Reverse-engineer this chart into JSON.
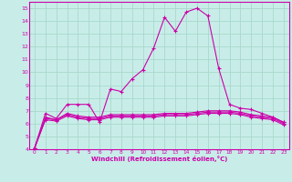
{
  "title": "",
  "xlabel": "Windchill (Refroidissement éolien,°C)",
  "ylabel": "",
  "bg_color": "#c8ede8",
  "line_color": "#cc00aa",
  "grid_color": "#a8d8cc",
  "text_color": "#cc00aa",
  "xlim": [
    -0.5,
    23.5
  ],
  "ylim": [
    4,
    15.5
  ],
  "xticks": [
    0,
    1,
    2,
    3,
    4,
    5,
    6,
    7,
    8,
    9,
    10,
    11,
    12,
    13,
    14,
    15,
    16,
    17,
    18,
    19,
    20,
    21,
    22,
    23
  ],
  "yticks": [
    4,
    5,
    6,
    7,
    8,
    9,
    10,
    11,
    12,
    13,
    14,
    15
  ],
  "series": [
    [
      4.1,
      6.8,
      6.4,
      7.5,
      7.5,
      7.5,
      6.1,
      8.7,
      8.5,
      9.5,
      10.2,
      11.9,
      14.3,
      13.2,
      14.7,
      15.0,
      14.4,
      10.3,
      7.5,
      7.2,
      7.1,
      6.8,
      6.5,
      6.1
    ],
    [
      4.1,
      6.5,
      6.3,
      6.8,
      6.6,
      6.5,
      6.5,
      6.7,
      6.7,
      6.7,
      6.7,
      6.7,
      6.8,
      6.8,
      6.8,
      6.9,
      7.0,
      7.0,
      7.0,
      6.9,
      6.7,
      6.6,
      6.5,
      6.1
    ],
    [
      4.1,
      6.4,
      6.3,
      6.7,
      6.5,
      6.4,
      6.4,
      6.6,
      6.6,
      6.6,
      6.6,
      6.6,
      6.7,
      6.7,
      6.7,
      6.8,
      6.9,
      6.9,
      6.9,
      6.8,
      6.6,
      6.5,
      6.4,
      6.0
    ],
    [
      4.1,
      6.3,
      6.2,
      6.6,
      6.4,
      6.3,
      6.3,
      6.5,
      6.5,
      6.5,
      6.5,
      6.5,
      6.6,
      6.6,
      6.6,
      6.7,
      6.8,
      6.8,
      6.8,
      6.7,
      6.5,
      6.4,
      6.3,
      5.9
    ]
  ]
}
